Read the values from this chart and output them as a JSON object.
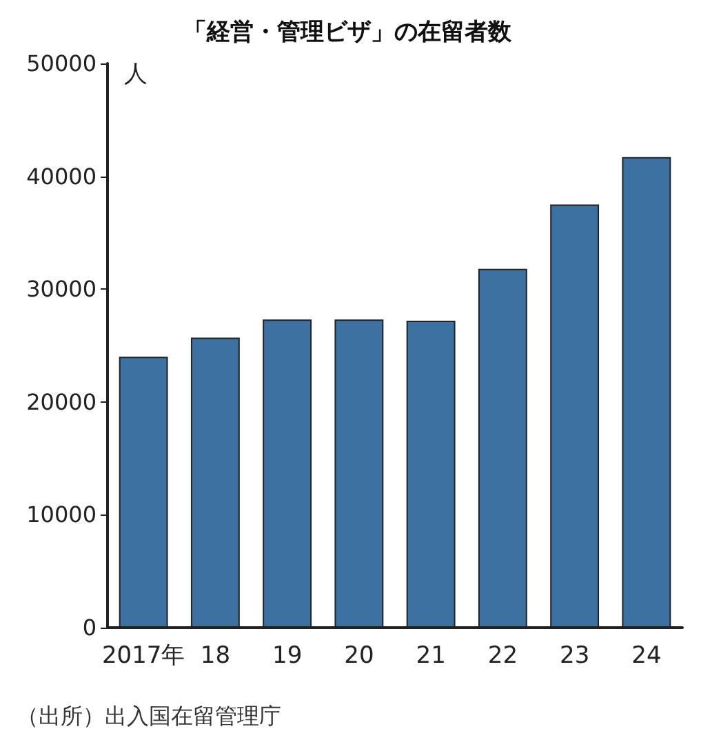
{
  "chart_data": {
    "type": "bar",
    "title": "「経営・管理ビザ」の在留者数",
    "ylabel": "人",
    "categories": [
      "2017年",
      "18",
      "19",
      "20",
      "21",
      "22",
      "23",
      "24"
    ],
    "values": [
      24000,
      25700,
      27300,
      27300,
      27200,
      31800,
      37500,
      41700
    ],
    "color": "#3d71a2",
    "ylim": [
      0,
      50000
    ],
    "yticks": [
      0,
      10000,
      20000,
      30000,
      40000,
      50000
    ],
    "grid": false,
    "annotations": [
      "（出所）出入国在留管理庁"
    ]
  }
}
